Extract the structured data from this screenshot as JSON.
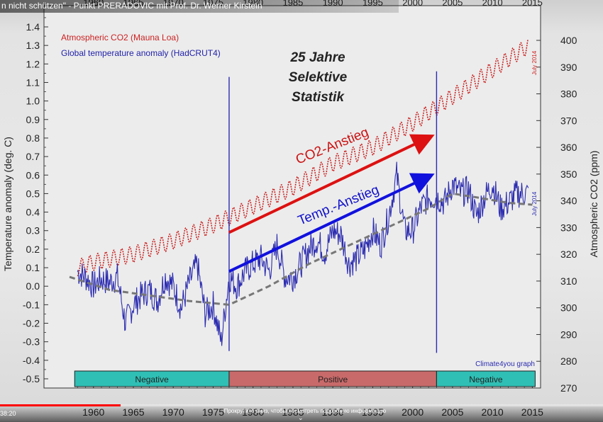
{
  "video": {
    "title": "n nicht schützen\" - Punkt PRERADOVIC mit Prof. Dr. Werner Kirstein",
    "time_current": "38:20",
    "progress": 0.2,
    "hint": "Прокрутите вниз, чтобы посмотреть подробную информацию"
  },
  "chart_data": {
    "type": "line",
    "title": "25 Jahre Selektive Statistik",
    "title_lines": [
      "25 Jahre",
      "Selektive",
      "Statistik"
    ],
    "xlim": [
      1957,
      2015.5
    ],
    "xticks": [
      1960,
      1965,
      1970,
      1975,
      1980,
      1985,
      1990,
      1995,
      2000,
      2005,
      2010,
      2015
    ],
    "y_left": {
      "label": "Temperature anomaly (deg. C)",
      "range": [
        -0.5,
        1.4
      ],
      "ticks": [
        "-0.5",
        "-0.4",
        "-0.3",
        "-0.2",
        "-0.1",
        "0.0",
        "0.1",
        "0.2",
        "0.3",
        "0.4",
        "0.5",
        "0.6",
        "0.7",
        "0.8",
        "0.9",
        "1.0",
        "1.1",
        "1.2",
        "1.3",
        "1.4"
      ]
    },
    "y_right": {
      "label": "Atmospheric CO2 (ppm)",
      "range": [
        270,
        400
      ],
      "ticks": [
        270,
        280,
        290,
        300,
        310,
        320,
        330,
        340,
        350,
        360,
        370,
        380,
        390,
        400
      ]
    },
    "grid": false,
    "legend": [
      {
        "name": "Atmospheric CO2 (Mauna Loa)",
        "color": "#cc2222"
      },
      {
        "name": "Global temperature anomaly (HadCRUT4)",
        "color": "#2222aa"
      }
    ],
    "annotations": {
      "co2_arrow": "CO2-Anstieg",
      "temp_arrow": "Temp.-Anstieg",
      "credit": "Climate4you graph",
      "july_left": "July 2014",
      "july_right": "July 2014"
    },
    "phase_bar": [
      {
        "label": "Negative",
        "from": 1958,
        "to": 1977,
        "color": "#2fbfb5"
      },
      {
        "label": "Positive",
        "from": 1977,
        "to": 2003,
        "color": "#c96a6a"
      },
      {
        "label": "Negative",
        "from": 2003,
        "to": 2015,
        "color": "#2fbfb5"
      }
    ],
    "co2_series": {
      "name": "Atmospheric CO2 (Mauna Loa)",
      "x": [
        1958,
        1960,
        1965,
        1970,
        1975,
        1980,
        1985,
        1990,
        1995,
        2000,
        2005,
        2010,
        2014.5
      ],
      "values": [
        315,
        317,
        320,
        325,
        331,
        338,
        345,
        354,
        360,
        369,
        379,
        389,
        398
      ],
      "seasonal_amplitude_ppm": 3
    },
    "temp_series": {
      "name": "Global temperature anomaly (HadCRUT4)",
      "x": [
        1958,
        1959,
        1960,
        1961,
        1962,
        1963,
        1964,
        1965,
        1966,
        1967,
        1968,
        1969,
        1970,
        1971,
        1972,
        1973,
        1974,
        1975,
        1976,
        1977,
        1978,
        1979,
        1980,
        1981,
        1982,
        1983,
        1984,
        1985,
        1986,
        1987,
        1988,
        1989,
        1990,
        1991,
        1992,
        1993,
        1994,
        1995,
        1996,
        1997,
        1998,
        1999,
        2000,
        2001,
        2002,
        2003,
        2004,
        2005,
        2006,
        2007,
        2008,
        2009,
        2010,
        2011,
        2012,
        2013,
        2014.5
      ],
      "values": [
        0.08,
        0.05,
        0.0,
        0.04,
        0.02,
        0.05,
        -0.2,
        -0.1,
        -0.05,
        -0.02,
        -0.08,
        0.05,
        0.0,
        -0.12,
        0.02,
        0.12,
        -0.15,
        -0.1,
        -0.3,
        0.05,
        0.0,
        0.08,
        0.12,
        0.15,
        0.08,
        0.22,
        0.05,
        0.05,
        0.12,
        0.2,
        0.25,
        0.18,
        0.3,
        0.28,
        0.12,
        0.15,
        0.2,
        0.3,
        0.22,
        0.38,
        0.6,
        0.3,
        0.3,
        0.42,
        0.48,
        0.48,
        0.45,
        0.55,
        0.5,
        0.52,
        0.38,
        0.48,
        0.55,
        0.42,
        0.45,
        0.5,
        0.5
      ]
    },
    "trend_series": {
      "name": "",
      "x": [
        1957,
        1962,
        1967,
        1972,
        1977,
        1982,
        1987,
        1992,
        1997,
        2002,
        2005,
        2008,
        2012,
        2015
      ],
      "values": [
        0.05,
        -0.02,
        -0.05,
        -0.08,
        -0.1,
        0.0,
        0.12,
        0.22,
        0.32,
        0.42,
        0.5,
        0.48,
        0.45,
        0.44
      ]
    },
    "markers": [
      {
        "x": 1977,
        "y_top": 1.13,
        "y_bottom": -0.35
      },
      {
        "x": 2003,
        "y_top": 1.16,
        "y_bottom": -0.36
      }
    ],
    "arrows": [
      {
        "name": "CO2-Anstieg",
        "from": [
          1977,
          0.29
        ],
        "to": [
          2003,
          0.82
        ],
        "color": "#dd1111"
      },
      {
        "name": "Temp.-Anstieg",
        "from": [
          1977,
          0.08
        ],
        "to": [
          2003,
          0.61
        ],
        "color": "#1111dd"
      }
    ]
  }
}
